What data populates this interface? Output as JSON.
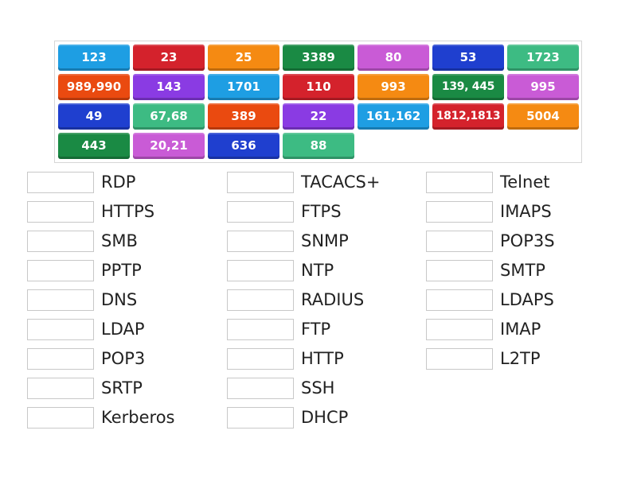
{
  "tiles": [
    {
      "label": "123",
      "color": "#1e9ee3"
    },
    {
      "label": "23",
      "color": "#d4222c"
    },
    {
      "label": "25",
      "color": "#f58a12"
    },
    {
      "label": "3389",
      "color": "#1a8a44"
    },
    {
      "label": "80",
      "color": "#c95bd6"
    },
    {
      "label": "53",
      "color": "#1f3fcf"
    },
    {
      "label": "1723",
      "color": "#3dbb83"
    },
    {
      "label": "989,990",
      "color": "#ea4a10"
    },
    {
      "label": "143",
      "color": "#8a3be3"
    },
    {
      "label": "1701",
      "color": "#1e9ee3"
    },
    {
      "label": "110",
      "color": "#d4222c"
    },
    {
      "label": "993",
      "color": "#f58a12"
    },
    {
      "label": "139, 445",
      "color": "#1a8a44"
    },
    {
      "label": "995",
      "color": "#c95bd6"
    },
    {
      "label": "49",
      "color": "#1f3fcf"
    },
    {
      "label": "67,68",
      "color": "#3dbb83"
    },
    {
      "label": "389",
      "color": "#ea4a10"
    },
    {
      "label": "22",
      "color": "#8a3be3"
    },
    {
      "label": "161,162",
      "color": "#1e9ee3"
    },
    {
      "label": "1812,1813",
      "color": "#d4222c"
    },
    {
      "label": "5004",
      "color": "#f58a12"
    },
    {
      "label": "443",
      "color": "#1a8a44"
    },
    {
      "label": "20,21",
      "color": "#c95bd6"
    },
    {
      "label": "636",
      "color": "#1f3fcf"
    },
    {
      "label": "88",
      "color": "#3dbb83"
    }
  ],
  "answers": {
    "column1": [
      "RDP",
      "HTTPS",
      "SMB",
      "PPTP",
      "DNS",
      "LDAP",
      "POP3",
      "SRTP",
      "Kerberos"
    ],
    "column2": [
      "TACACS+",
      "FTPS",
      "SNMP",
      "NTP",
      "RADIUS",
      "FTP",
      "HTTP",
      "SSH",
      "DHCP"
    ],
    "column3": [
      "Telnet",
      "IMAPS",
      "POP3S",
      "SMTP",
      "LDAPS",
      "IMAP",
      "L2TP"
    ]
  }
}
